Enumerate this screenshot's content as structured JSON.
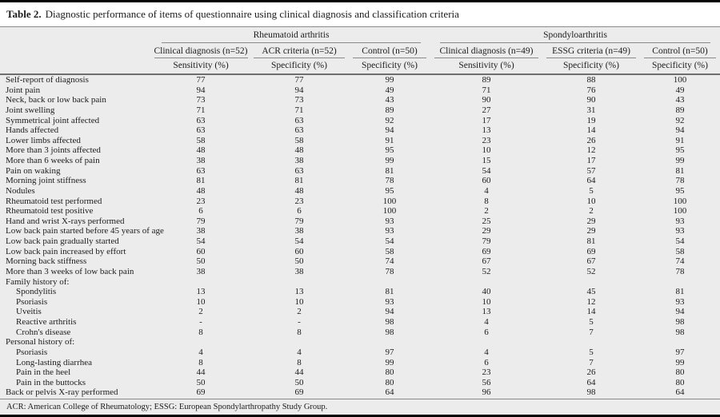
{
  "title": {
    "label": "Table 2.",
    "text": "Diagnostic performance of items of questionnaire using clinical diagnosis and classification criteria"
  },
  "table": {
    "groups": [
      {
        "label": "Rheumatoid arthritis"
      },
      {
        "label": "Spondyloarthritis"
      }
    ],
    "columns": [
      {
        "label": "Clinical diagnosis (n=52)",
        "measure": "Sensitivity (%)"
      },
      {
        "label": "ACR criteria (n=52)",
        "measure": "Specificity (%)"
      },
      {
        "label": "Control (n=50)",
        "measure": "Specificity (%)"
      },
      {
        "label": "Clinical diagnosis (n=49)",
        "measure": "Sensitivity (%)"
      },
      {
        "label": "ESSG criteria (n=49)",
        "measure": "Specificity (%)"
      },
      {
        "label": "Control (n=50)",
        "measure": "Specificity (%)"
      }
    ],
    "rows": [
      {
        "label": "Self-report of diagnosis",
        "indent": false,
        "values": [
          "77",
          "77",
          "99",
          "89",
          "88",
          "100"
        ]
      },
      {
        "label": "Joint pain",
        "indent": false,
        "values": [
          "94",
          "94",
          "49",
          "71",
          "76",
          "49"
        ]
      },
      {
        "label": "Neck, back or low back pain",
        "indent": false,
        "values": [
          "73",
          "73",
          "43",
          "90",
          "90",
          "43"
        ]
      },
      {
        "label": "Joint swelling",
        "indent": false,
        "values": [
          "71",
          "71",
          "89",
          "27",
          "31",
          "89"
        ]
      },
      {
        "label": "Symmetrical joint affected",
        "indent": false,
        "values": [
          "63",
          "63",
          "92",
          "17",
          "19",
          "92"
        ]
      },
      {
        "label": "Hands affected",
        "indent": false,
        "values": [
          "63",
          "63",
          "94",
          "13",
          "14",
          "94"
        ]
      },
      {
        "label": "Lower limbs affected",
        "indent": false,
        "values": [
          "58",
          "58",
          "91",
          "23",
          "26",
          "91"
        ]
      },
      {
        "label": "More than 3 joints affected",
        "indent": false,
        "values": [
          "48",
          "48",
          "95",
          "10",
          "12",
          "95"
        ]
      },
      {
        "label": "More than 6 weeks of pain",
        "indent": false,
        "values": [
          "38",
          "38",
          "99",
          "15",
          "17",
          "99"
        ]
      },
      {
        "label": "Pain on waking",
        "indent": false,
        "values": [
          "63",
          "63",
          "81",
          "54",
          "57",
          "81"
        ]
      },
      {
        "label": "Morning joint stiffness",
        "indent": false,
        "values": [
          "81",
          "81",
          "78",
          "60",
          "64",
          "78"
        ]
      },
      {
        "label": "Nodules",
        "indent": false,
        "values": [
          "48",
          "48",
          "95",
          "4",
          "5",
          "95"
        ]
      },
      {
        "label": "Rheumatoid test performed",
        "indent": false,
        "values": [
          "23",
          "23",
          "100",
          "8",
          "10",
          "100"
        ]
      },
      {
        "label": "Rheumatoid test positive",
        "indent": false,
        "values": [
          "6",
          "6",
          "100",
          "2",
          "2",
          "100"
        ]
      },
      {
        "label": "Hand and wrist X-rays performed",
        "indent": false,
        "values": [
          "79",
          "79",
          "93",
          "25",
          "29",
          "93"
        ]
      },
      {
        "label": "Low back pain started before 45 years of age",
        "indent": false,
        "values": [
          "38",
          "38",
          "93",
          "29",
          "29",
          "93"
        ]
      },
      {
        "label": "Low back pain gradually started",
        "indent": false,
        "values": [
          "54",
          "54",
          "54",
          "79",
          "81",
          "54"
        ]
      },
      {
        "label": "Low back pain increased by effort",
        "indent": false,
        "values": [
          "60",
          "60",
          "58",
          "69",
          "69",
          "58"
        ]
      },
      {
        "label": "Morning back stiffness",
        "indent": false,
        "values": [
          "50",
          "50",
          "74",
          "67",
          "67",
          "74"
        ]
      },
      {
        "label": "More than 3 weeks of low back pain",
        "indent": false,
        "values": [
          "38",
          "38",
          "78",
          "52",
          "52",
          "78"
        ]
      },
      {
        "label": "Family history of:",
        "indent": false,
        "values": [
          "",
          "",
          "",
          "",
          "",
          ""
        ]
      },
      {
        "label": "Spondylitis",
        "indent": true,
        "values": [
          "13",
          "13",
          "81",
          "40",
          "45",
          "81"
        ]
      },
      {
        "label": "Psoriasis",
        "indent": true,
        "values": [
          "10",
          "10",
          "93",
          "10",
          "12",
          "93"
        ]
      },
      {
        "label": "Uveitis",
        "indent": true,
        "values": [
          "2",
          "2",
          "94",
          "13",
          "14",
          "94"
        ]
      },
      {
        "label": "Reactive arthritis",
        "indent": true,
        "values": [
          "-",
          "-",
          "98",
          "4",
          "5",
          "98"
        ]
      },
      {
        "label": "Crohn's disease",
        "indent": true,
        "values": [
          "8",
          "8",
          "98",
          "6",
          "7",
          "98"
        ]
      },
      {
        "label": "Personal history of:",
        "indent": false,
        "values": [
          "",
          "",
          "",
          "",
          "",
          ""
        ]
      },
      {
        "label": "Psoriasis",
        "indent": true,
        "values": [
          "4",
          "4",
          "97",
          "4",
          "5",
          "97"
        ]
      },
      {
        "label": "Long-lasting diarrhea",
        "indent": true,
        "values": [
          "8",
          "8",
          "99",
          "6",
          "7",
          "99"
        ]
      },
      {
        "label": "Pain in the heel",
        "indent": true,
        "values": [
          "44",
          "44",
          "80",
          "23",
          "26",
          "80"
        ]
      },
      {
        "label": "Pain in the buttocks",
        "indent": true,
        "values": [
          "50",
          "50",
          "80",
          "56",
          "64",
          "80"
        ]
      },
      {
        "label": "Back or pelvis X-ray performed",
        "indent": false,
        "values": [
          "69",
          "69",
          "64",
          "96",
          "98",
          "64"
        ]
      }
    ],
    "footnote": "ACR: American College of Rheumatology; ESSG: European Spondylarthropathy Study Group."
  },
  "colors": {
    "table_background": "#ececec",
    "rule": "#8a8a8a",
    "header_rule": "#6e6e6e",
    "bar": "#000000",
    "text": "#1c1c1c"
  }
}
